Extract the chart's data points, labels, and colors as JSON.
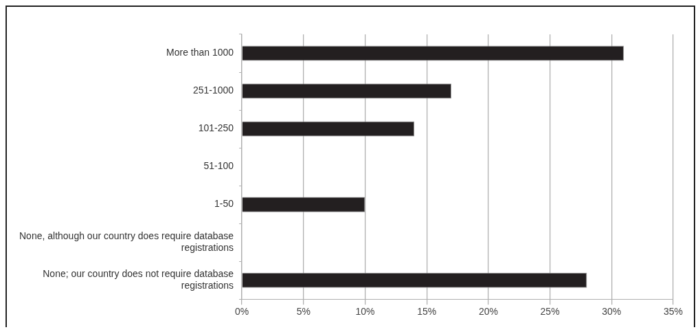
{
  "chart_data": {
    "type": "bar",
    "orientation": "horizontal",
    "categories": [
      "More than 1000",
      "251-1000",
      "101-250",
      "51-100",
      "1-50",
      "None, although our country does require database registrations",
      "None; our country does not require database registrations"
    ],
    "values": [
      31,
      17,
      14,
      0,
      10,
      0,
      28
    ],
    "color": "#231f20",
    "xlim": [
      0,
      35
    ],
    "xticks": [
      {
        "value": 0,
        "label": "0%"
      },
      {
        "value": 5,
        "label": "5%"
      },
      {
        "value": 10,
        "label": "10%"
      },
      {
        "value": 15,
        "label": "15%"
      },
      {
        "value": 20,
        "label": "20%"
      },
      {
        "value": 25,
        "label": "25%"
      },
      {
        "value": 30,
        "label": "30%"
      },
      {
        "value": 35,
        "label": "35%"
      }
    ],
    "grid": "x"
  }
}
